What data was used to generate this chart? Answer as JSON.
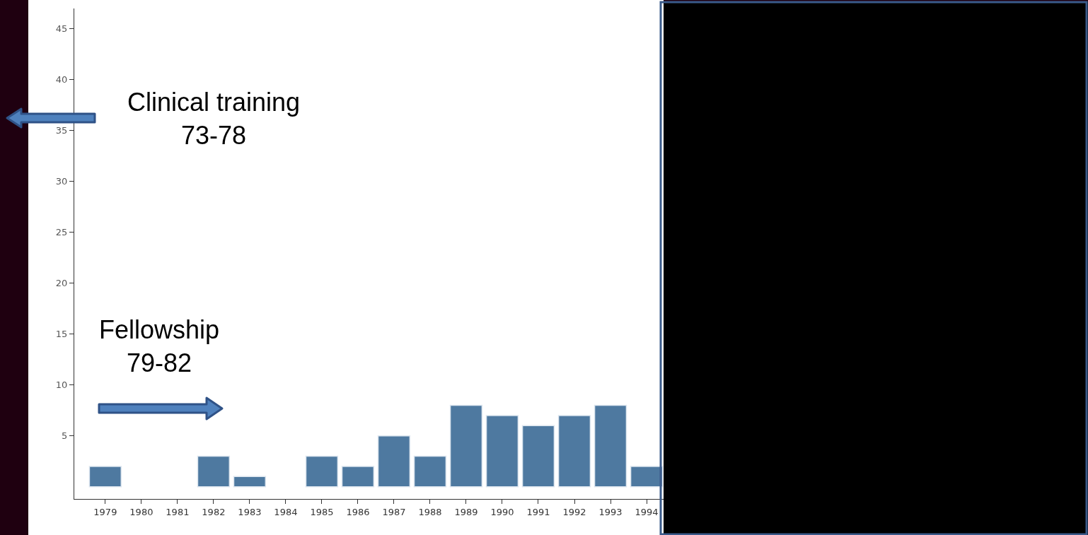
{
  "chart_data": {
    "type": "bar",
    "categories": [
      "1979",
      "1980",
      "1981",
      "1982",
      "1983",
      "1984",
      "1985",
      "1986",
      "1987",
      "1988",
      "1989",
      "1990",
      "1991",
      "1992",
      "1993",
      "1994"
    ],
    "values": [
      2,
      0,
      0,
      3,
      1,
      0,
      3,
      2,
      5,
      3,
      8,
      7,
      6,
      7,
      8,
      2
    ],
    "color": "#4e79a0",
    "ylim": [
      -1.2,
      47
    ],
    "yticks": [
      5,
      10,
      15,
      20,
      25,
      30,
      35,
      40,
      45
    ],
    "grid": false,
    "legend": false,
    "annotations": [
      "Clinical training\n73-78",
      "Fellowship\n79-82"
    ]
  }
}
